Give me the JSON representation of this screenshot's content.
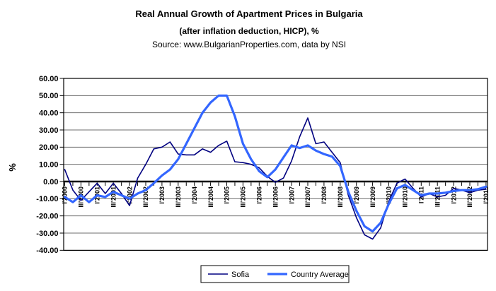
{
  "title": {
    "line1": "Real Annual Growth of Apartment Prices in Bulgaria",
    "line2": "(after inflation deduction, HICP), %",
    "line3": "Source: www.BulgarianProperties.com, data by NSI"
  },
  "y_axis": {
    "title": "%",
    "tick_labels": [
      "60.00",
      "50.00",
      "40.00",
      "30.00",
      "20.00",
      "10.00",
      "0.00",
      "-10.00",
      "-20.00",
      "-30.00",
      "-40.00"
    ]
  },
  "x_axis": {
    "tick_labels": [
      "I'2000",
      "III'2000",
      "I'2001",
      "III'2001",
      "I'2002",
      "III'2002",
      "I'2003",
      "III'2003",
      "I'2004",
      "III'2004",
      "I'2005",
      "III'2005",
      "I'2006",
      "III'2006",
      "I'2007",
      "III'2007",
      "I'2008",
      "III'2008",
      "I'2009",
      "III'2009",
      "I'2010",
      "III'2010",
      "I'2011",
      "III'2011",
      "I'2012",
      "III'2012",
      "I'2013"
    ]
  },
  "legend": {
    "items": [
      {
        "label": "Sofia",
        "color": "#000080",
        "thickness": 1.6
      },
      {
        "label": "Country Average",
        "color": "#3366FF",
        "thickness": 3.2
      }
    ]
  },
  "chart_data": {
    "type": "line",
    "title": "Real Annual Growth of Apartment Prices in Bulgaria (after inflation deduction, HICP), %",
    "source": "Source: www.BulgarianProperties.com, data by NSI",
    "ylabel": "%",
    "ylim": [
      -40,
      60
    ],
    "y_tick_step": 10,
    "x_label_every": 2,
    "grid": "horizontal",
    "legend_position": "bottom-center",
    "categories": [
      "I'2000",
      "II'2000",
      "III'2000",
      "IV'2000",
      "I'2001",
      "II'2001",
      "III'2001",
      "IV'2001",
      "I'2002",
      "II'2002",
      "III'2002",
      "IV'2002",
      "I'2003",
      "II'2003",
      "III'2003",
      "IV'2003",
      "I'2004",
      "II'2004",
      "III'2004",
      "IV'2004",
      "I'2005",
      "II'2005",
      "III'2005",
      "IV'2005",
      "I'2006",
      "II'2006",
      "III'2006",
      "IV'2006",
      "I'2007",
      "II'2007",
      "III'2007",
      "IV'2007",
      "I'2008",
      "II'2008",
      "III'2008",
      "IV'2008",
      "I'2009",
      "II'2009",
      "III'2009",
      "IV'2009",
      "I'2010",
      "II'2010",
      "III'2010",
      "IV'2010",
      "I'2011",
      "II'2011",
      "III'2011",
      "IV'2011",
      "I'2012",
      "II'2012",
      "III'2012",
      "IV'2012",
      "I'2013"
    ],
    "series": [
      {
        "name": "Sofia",
        "color": "#000080",
        "width": 1.6,
        "values": [
          7,
          -5,
          -11,
          -6,
          -1,
          -7,
          -1,
          -7,
          -14,
          2,
          10,
          19,
          20,
          23,
          16,
          15.5,
          15.5,
          19,
          17,
          21,
          23.5,
          11.5,
          11,
          10,
          8,
          3,
          -0.5,
          2,
          12,
          26,
          37,
          22,
          23,
          17,
          11,
          -8,
          -21,
          -31,
          -33.5,
          -27,
          -11.5,
          -1,
          1.5,
          -4,
          -9,
          -7,
          -9,
          -8,
          -4,
          -5,
          -6.5,
          -5,
          -4.5
        ]
      },
      {
        "name": "Country Average",
        "color": "#3366FF",
        "width": 3.2,
        "values": [
          -9,
          -12,
          -8,
          -12,
          -8,
          -9,
          -6,
          -8,
          -10,
          -7,
          -5,
          -1,
          3.5,
          7,
          13,
          22,
          31,
          40,
          46,
          50,
          50,
          38,
          22,
          13,
          6,
          2.5,
          7,
          14,
          21,
          19.5,
          21,
          18,
          16,
          14.5,
          9,
          -6,
          -17,
          -26,
          -29,
          -24,
          -13,
          -4,
          -2,
          -5,
          -8,
          -7,
          -7,
          -6.5,
          -5.5,
          -5,
          -5,
          -4.5,
          -3
        ]
      }
    ]
  }
}
